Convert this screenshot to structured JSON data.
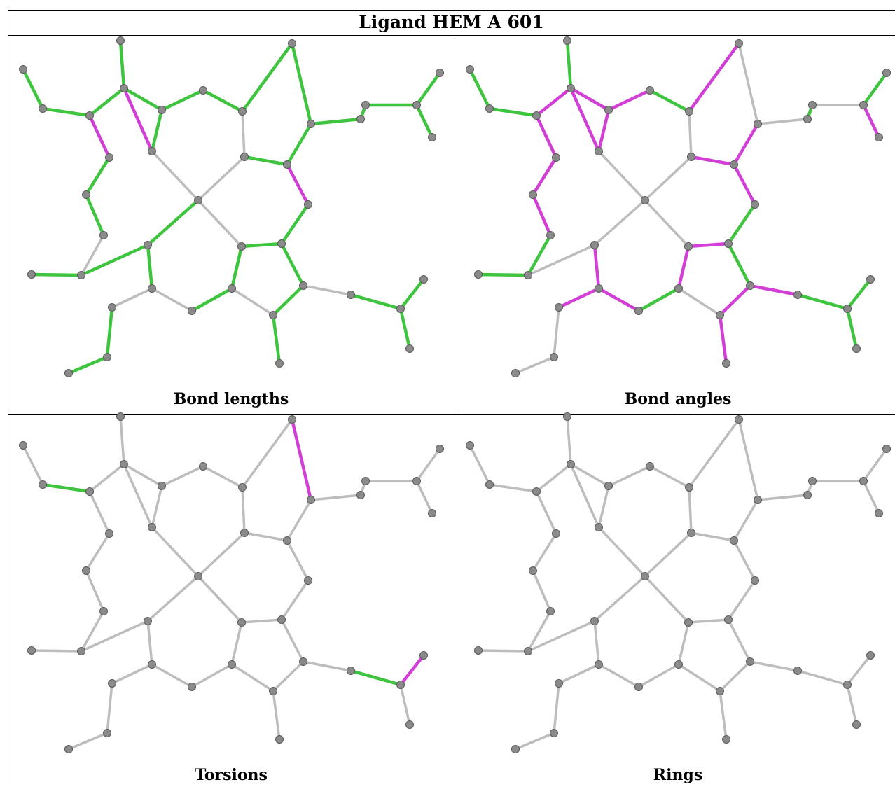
{
  "title": "Ligand HEM A 601",
  "panels": [
    {
      "caption": "Bond lengths",
      "bonds": {
        "1-2": "green",
        "2-3": "green",
        "3-4": "green",
        "3-5": "magenta",
        "5-6": "green",
        "4-7": "green",
        "4-8": "magenta",
        "7-8": "green",
        "6-9": "green",
        "8-10": "magenta",
        "9-11": "grey",
        "11-12": "green",
        "12-13": "green",
        "12-14": "green",
        "14-15": "grey",
        "15-16": "green",
        "16-17": "green",
        "15-18": "grey",
        "18-19": "green",
        "19-20": "grey",
        "7-21": "green",
        "21-22": "green",
        "22-23": "green",
        "22-24": "grey",
        "24-25": "green",
        "24-26": "grey",
        "26-27": "green",
        "27-28": "green",
        "28-29": "green",
        "28-30": "green",
        "30-31": "green",
        "31-32": "green",
        "32-33": "green",
        "33-34": "green",
        "34-35": "magenta",
        "34-36": "green",
        "31-37": "green",
        "30-38": "green",
        "38-39": "green",
        "39-40": "green",
        "39-41": "green",
        "41-42": "grey",
        "41-43": "green",
        "43-44": "green",
        "44-45": "green",
        "45-46": "green",
        "45-47": "green",
        "10-26": "grey",
        "10-32": "green",
        "10-13": "grey",
        "10-39": "grey"
      }
    },
    {
      "caption": "Bond angles",
      "bonds": {
        "1-2": "green",
        "2-3": "green",
        "3-4": "magenta",
        "3-5": "magenta",
        "5-6": "magenta",
        "4-7": "magenta",
        "4-8": "magenta",
        "7-8": "magenta",
        "6-9": "magenta",
        "8-10": "grey",
        "9-11": "green",
        "11-12": "grey",
        "12-13": "green",
        "12-14": "magenta",
        "14-15": "magenta",
        "15-16": "grey",
        "16-17": "grey",
        "15-18": "magenta",
        "18-19": "green",
        "19-20": "grey",
        "7-21": "magenta",
        "21-22": "green",
        "22-23": "green",
        "22-24": "green",
        "24-25": "magenta",
        "24-26": "grey",
        "26-27": "grey",
        "27-28": "grey",
        "28-29": "green",
        "28-30": "grey",
        "30-31": "green",
        "31-32": "magenta",
        "32-33": "magenta",
        "33-34": "magenta",
        "34-35": "magenta",
        "34-36": "green",
        "31-37": "magenta",
        "30-38": "magenta",
        "38-39": "magenta",
        "39-40": "green",
        "39-41": "magenta",
        "41-42": "magenta",
        "41-43": "green",
        "43-44": "green",
        "44-45": "green",
        "45-46": "green",
        "45-47": "green",
        "10-26": "grey",
        "10-32": "grey",
        "10-13": "grey",
        "10-39": "grey"
      }
    },
    {
      "caption": "Torsions",
      "bonds": {
        "1-2": "grey",
        "2-3": "green",
        "24-25": "green",
        "25-26": "grey",
        "26-27": "magenta",
        "41-43": "green",
        "43-44": "magenta"
      }
    },
    {
      "caption": "Rings",
      "bonds": {}
    }
  ]
}
